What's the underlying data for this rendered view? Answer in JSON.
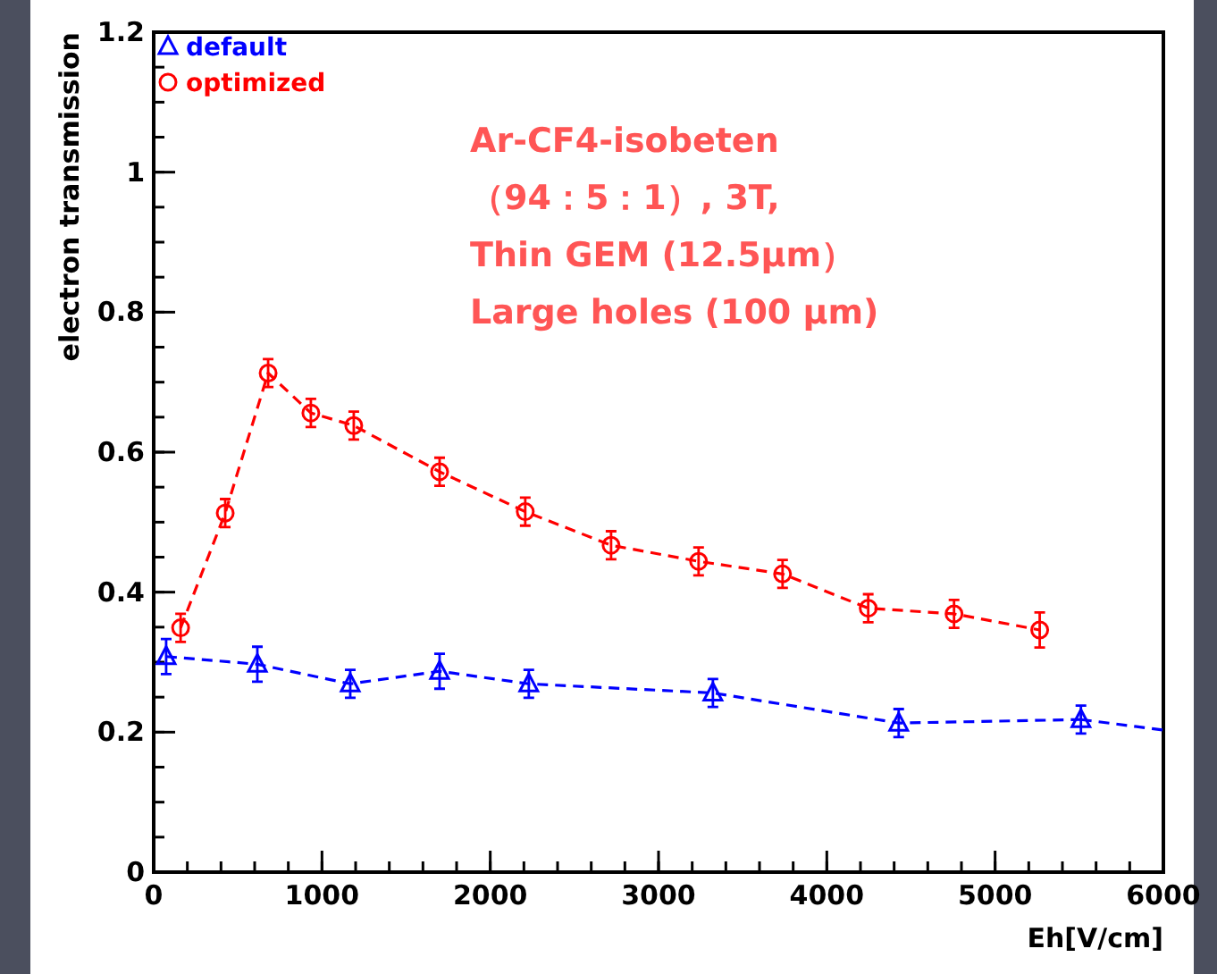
{
  "chart_data": {
    "type": "line",
    "xlabel": "Eh[V/cm]",
    "ylabel": "electron transmission",
    "xlim": [
      0,
      6000
    ],
    "xticks": [
      0,
      1000,
      2000,
      3000,
      4000,
      5000,
      6000
    ],
    "ylim": [
      0,
      1.2
    ],
    "yticks": [
      0,
      0.2,
      0.4,
      0.6,
      0.8,
      1,
      1.2
    ],
    "grid": false,
    "legend": "top left",
    "line_style": "dashed",
    "annotations": [
      "Ar-CF4-isobeten\n（94：5：1）, 3T,\nThin GEM (12.5μm）\nLarge holes (100 μm)"
    ],
    "series": [
      {
        "name": "default",
        "color": "#0000ff",
        "marker": "triangle",
        "x": [
          74,
          616,
          1168,
          1699,
          2229,
          3323,
          4427,
          5510
        ],
        "values": [
          0.308,
          0.297,
          0.269,
          0.287,
          0.269,
          0.256,
          0.213,
          0.218
        ],
        "errors": [
          0.025,
          0.025,
          0.02,
          0.025,
          0.02,
          0.02,
          0.02,
          0.02
        ]
      },
      {
        "color": "#0000ff",
        "marker": "none",
        "x": [
          5510,
          6000
        ],
        "values": [
          0.218,
          0.203
        ]
      },
      {
        "name": "optimized",
        "color": "#ff0000",
        "marker": "circle",
        "x": [
          160,
          425,
          680,
          934,
          1189,
          1699,
          2208,
          2718,
          3238,
          3737,
          4246,
          4756,
          5265
        ],
        "values": [
          0.349,
          0.513,
          0.713,
          0.656,
          0.638,
          0.572,
          0.515,
          0.467,
          0.444,
          0.426,
          0.377,
          0.369,
          0.346
        ],
        "errors": [
          0.02,
          0.02,
          0.02,
          0.02,
          0.02,
          0.02,
          0.02,
          0.02,
          0.02,
          0.02,
          0.02,
          0.02,
          0.025
        ]
      }
    ]
  }
}
